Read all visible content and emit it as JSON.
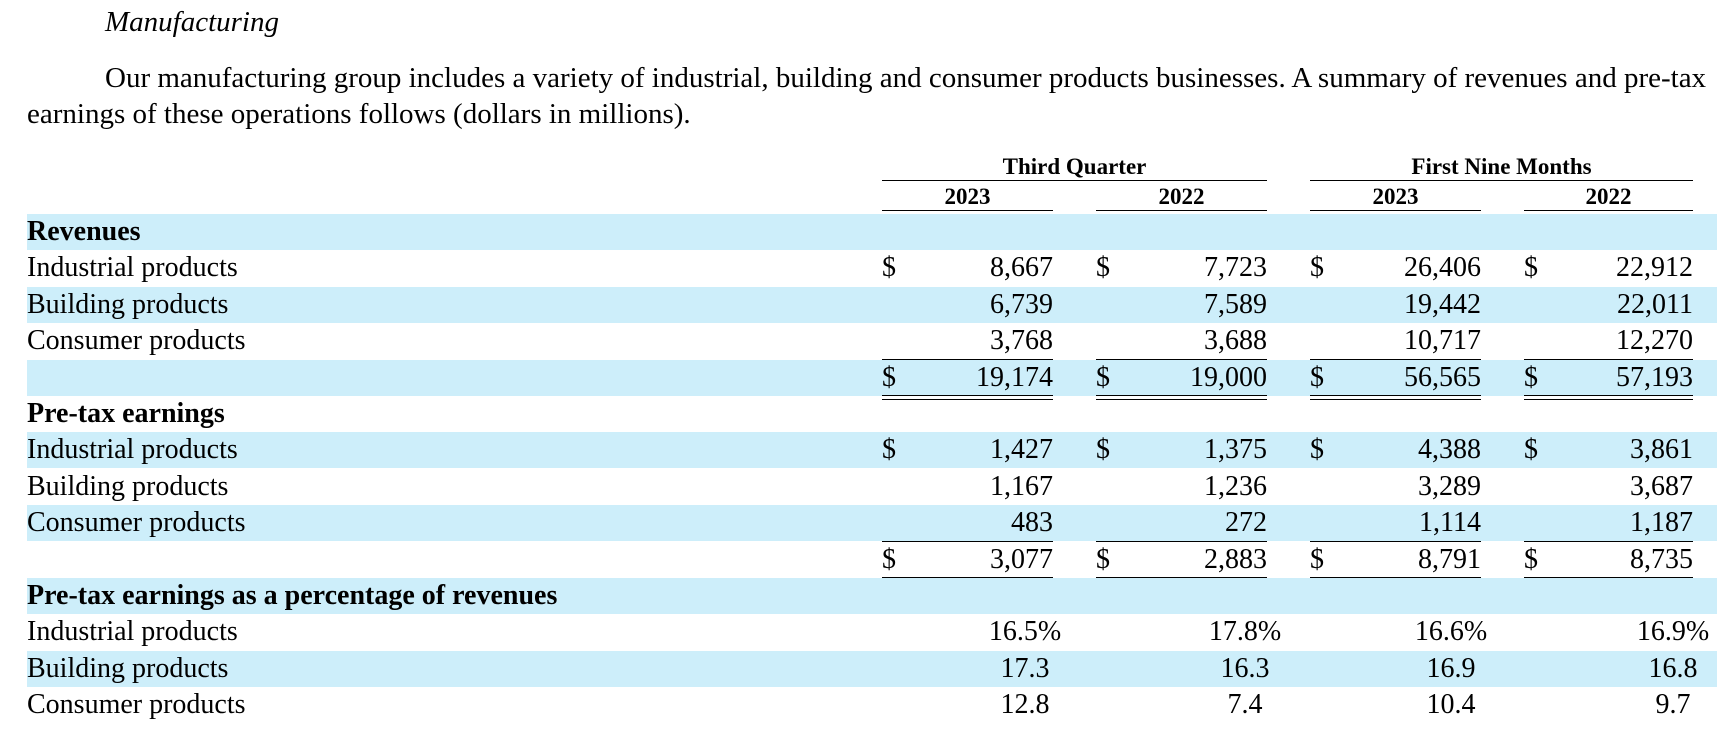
{
  "heading": "Manufacturing",
  "intro": "Our manufacturing group includes a variety of industrial, building and consumer products businesses. A summary of revenues and pre-tax earnings of these operations follows (dollars in millions).",
  "column_groups": [
    "Third Quarter",
    "First Nine Months"
  ],
  "columns": [
    "2023",
    "2022",
    "2023",
    "2022"
  ],
  "sections": [
    {
      "title": "Revenues",
      "rows": [
        {
          "label": "Industrial products",
          "dollar": true,
          "values": [
            "8,667",
            "7,723",
            "26,406",
            "22,912"
          ]
        },
        {
          "label": "Building products",
          "dollar": false,
          "values": [
            "6,739",
            "7,589",
            "19,442",
            "22,011"
          ]
        },
        {
          "label": "Consumer products",
          "dollar": false,
          "values": [
            "3,768",
            "3,688",
            "10,717",
            "12,270"
          ]
        }
      ],
      "total": {
        "label": "",
        "dollar": true,
        "values": [
          "19,174",
          "19,000",
          "56,565",
          "57,193"
        ]
      }
    },
    {
      "title": "Pre-tax earnings",
      "rows": [
        {
          "label": "Industrial products",
          "dollar": true,
          "values": [
            "1,427",
            "1,375",
            "4,388",
            "3,861"
          ]
        },
        {
          "label": "Building products",
          "dollar": false,
          "values": [
            "1,167",
            "1,236",
            "3,289",
            "3,687"
          ]
        },
        {
          "label": "Consumer products",
          "dollar": false,
          "values": [
            "483",
            "272",
            "1,114",
            "1,187"
          ]
        }
      ],
      "total": {
        "label": "",
        "dollar": true,
        "values": [
          "3,077",
          "2,883",
          "8,791",
          "8,735"
        ]
      }
    },
    {
      "title": "Pre-tax earnings as a percentage of revenues",
      "rows": [
        {
          "label": "Industrial products",
          "dollar": false,
          "values": [
            "16.5%",
            "17.8%",
            "16.6%",
            "16.9%"
          ]
        },
        {
          "label": "Building products",
          "dollar": false,
          "values": [
            "17.3",
            "16.3",
            "16.9",
            "16.8"
          ]
        },
        {
          "label": "Consumer products",
          "dollar": false,
          "values": [
            "12.8",
            "7.4",
            "10.4",
            "9.7"
          ]
        }
      ]
    }
  ],
  "currency_symbol": "$",
  "colors": {
    "band": "#cdeefa",
    "text": "#000000"
  }
}
